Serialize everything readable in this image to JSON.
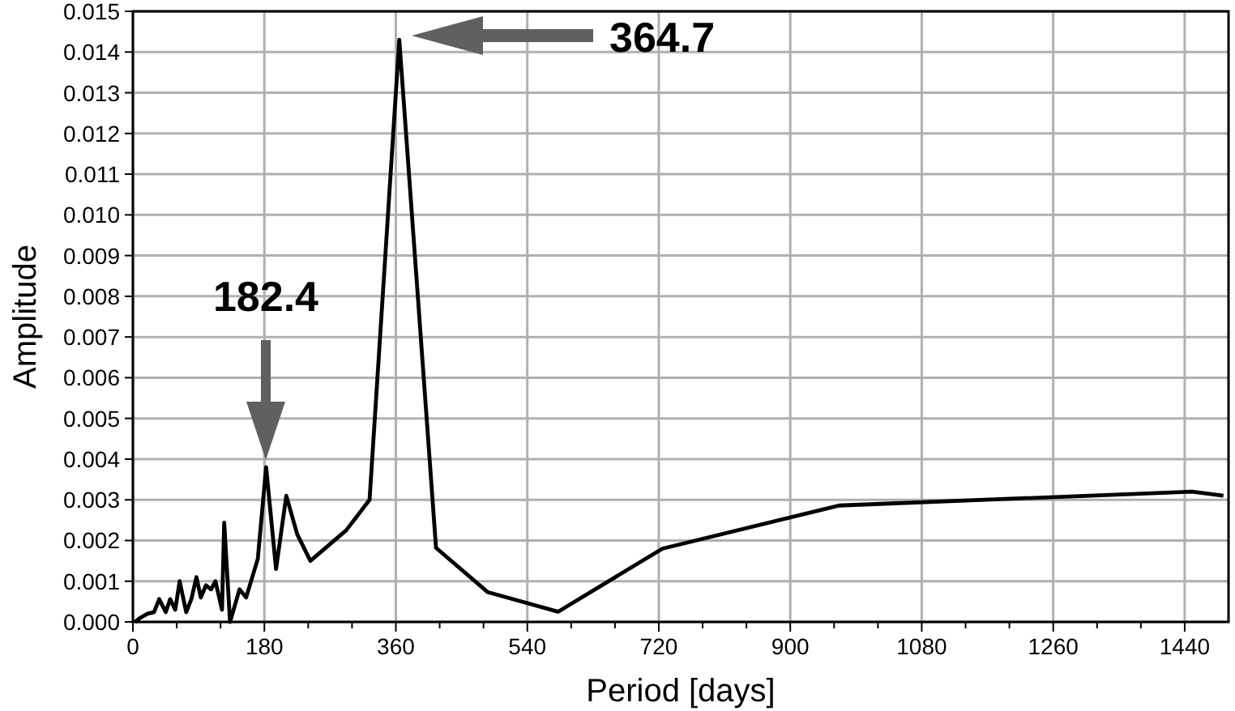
{
  "chart_data": {
    "type": "line",
    "xlabel": "Period [days]",
    "ylabel": "Amplitude",
    "x": [
      3,
      10,
      20,
      29,
      36,
      45,
      51,
      58,
      64,
      73,
      80,
      87,
      93,
      100,
      107,
      113,
      122,
      125,
      133,
      146,
      155,
      171,
      182.4,
      196,
      210,
      225,
      243,
      292,
      324,
      364.7,
      415,
      486,
      582,
      725,
      967,
      1450,
      1493
    ],
    "series": [
      {
        "color": "#000000",
        "values": [
          0,
          0.0001,
          0.0002,
          0.00024,
          0.00056,
          0.00024,
          0.00056,
          0.0003,
          0.001,
          0.00024,
          0.00056,
          0.0011,
          0.0006,
          0.0009,
          0.0008,
          0.001,
          0.0003,
          0.00244,
          0,
          0.0008,
          0.0006,
          0.00155,
          0.0038,
          0.0013,
          0.0031,
          0.00215,
          0.0015,
          0.00225,
          0.003,
          0.0143,
          0.00182,
          0.00073,
          0.00025,
          0.0018,
          0.00286,
          0.0032,
          0.0031
        ]
      }
    ],
    "xlim": [
      0,
      1500
    ],
    "ylim": [
      0,
      0.015
    ],
    "xticks": [
      0,
      {
        "value": 60,
        "label": null
      },
      {
        "value": 120,
        "label": null
      },
      180,
      {
        "value": 240,
        "label": null
      },
      {
        "value": 300,
        "label": null
      },
      360,
      {
        "value": 420,
        "label": null
      },
      {
        "value": 480,
        "label": null
      },
      540,
      {
        "value": 600,
        "label": null
      },
      {
        "value": 660,
        "label": null
      },
      720,
      {
        "value": 780,
        "label": null
      },
      {
        "value": 840,
        "label": null
      },
      900,
      {
        "value": 960,
        "label": null
      },
      {
        "value": 1020,
        "label": null
      },
      1080,
      {
        "value": 1140,
        "label": null
      },
      {
        "value": 1200,
        "label": null
      },
      1260,
      {
        "value": 1320,
        "label": null
      },
      {
        "value": 1380,
        "label": null
      },
      1440
    ],
    "yticks": [
      {
        "value": 0,
        "label": "0.000"
      },
      {
        "value": 0.001,
        "label": "0.001"
      },
      {
        "value": 0.002,
        "label": "0.002"
      },
      {
        "value": 0.003,
        "label": "0.003"
      },
      {
        "value": 0.004,
        "label": "0.004"
      },
      {
        "value": 0.005,
        "label": "0.005"
      },
      {
        "value": 0.006,
        "label": "0.006"
      },
      {
        "value": 0.007,
        "label": "0.007"
      },
      {
        "value": 0.008,
        "label": "0.008"
      },
      {
        "value": 0.009,
        "label": "0.009"
      },
      {
        "value": 0.01,
        "label": "0.010"
      },
      {
        "value": 0.011,
        "label": "0.011"
      },
      {
        "value": 0.012,
        "label": "0.012"
      },
      {
        "value": 0.013,
        "label": "0.013"
      },
      {
        "value": 0.014,
        "label": "0.014"
      },
      {
        "value": 0.015,
        "label": "0.015"
      }
    ],
    "grid": true,
    "line_style": "solid",
    "marker": "none",
    "annotations": [
      "182.4",
      "364.7"
    ]
  }
}
